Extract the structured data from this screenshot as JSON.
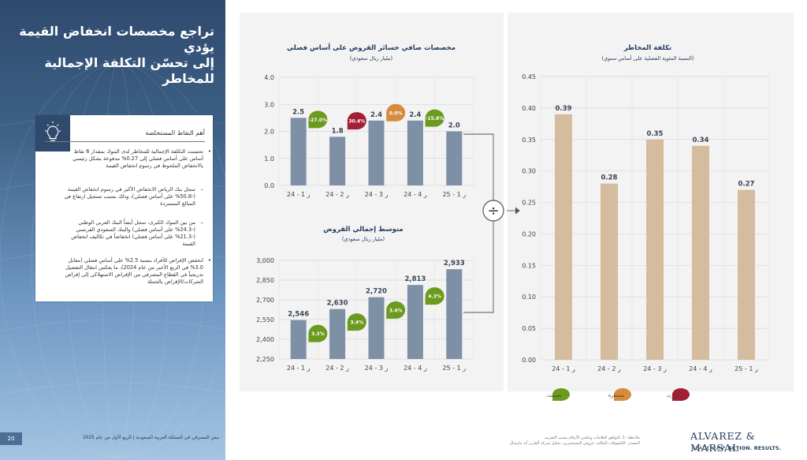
{
  "slide": {
    "title_line1": "تراجع مخصصات انخفاض القيمة يؤدي",
    "title_line2": "إلى تحسّن التكلفة الإجمالية للمخاطر",
    "page_number": "20",
    "footer_text": "نبض المصرفي في المملكة العربية السعودية | الربع الأول من عام 2025"
  },
  "key_takeaways": {
    "header": "أهم النقاط المستخلصة",
    "items": [
      {
        "text": "تحسنت التكلفة الإجمالية للمخاطر لدى البنوك بمقدار 6 نقاط أساس على أساس فصلي إلى 0.27% مدفوعة بشكل رئيسي بالانخفاض الملحوظ في رسوم انخفاض القيمة",
        "sub": false,
        "mark": "•"
      },
      {
        "text": "سجل بنك الرياض الانخفاض الأكبر في رسوم انخفاض القيمة (-50.8% على أساس فصلي)، وذلك بسبب تسجيل ارتفاع في المبالغ المستردة",
        "sub": true,
        "mark": "–"
      },
      {
        "text": "من بين البنوك الكبرى، سجل أيضاً البنك العربي الوطني (-24.3% على أساس فصلي) والبنك السعودي الفرنسي (-21.3% على أساس فصلي) انخفاضاً في تكاليف انخفاض القيمة",
        "sub": true,
        "mark": "–"
      },
      {
        "text": "انخفض الإقراض للأفراد بنسبة 2.5% على أساس فصلي (مقابل 3.0% في الربع الأخير من عام 2024)، ما يعكس انتقال التفضيل تدريجياً في القطاع المصرفي من الإقراض الاستهلاكي إلى إقراض الشركات/الإقراض بالجملة",
        "sub": false,
        "mark": "•"
      }
    ]
  },
  "colors": {
    "bar_blue": "#7e90a5",
    "bar_tan": "#d6bc9e",
    "badge_green": "#6b9a1f",
    "badge_orange": "#d48b3c",
    "badge_red": "#a31f34",
    "navy": "#1f3a5c"
  },
  "chart_data": [
    {
      "id": "impairment",
      "type": "bar",
      "title": "مخصصات صافي خسائر القروض على أساس فصلي",
      "subtitle": "(مليار ريال سعودي)",
      "categories": [
        "ر 1 - 24",
        "ر 2 - 24",
        "ر 3 - 24",
        "ر 4 - 24",
        "ر 1 - 25"
      ],
      "values": [
        2.5,
        1.8,
        2.4,
        2.4,
        2.0
      ],
      "value_labels": [
        "2.5",
        "1.8",
        "2.4",
        "2.4",
        "2.0"
      ],
      "ylim": [
        0,
        4
      ],
      "yticks": [
        "0.0",
        "1.0",
        "2.0",
        "3.0",
        "4.0"
      ],
      "grid": true,
      "badges": [
        {
          "text": "-27.0%",
          "status": "green"
        },
        {
          "text": "30.4%",
          "status": "red"
        },
        {
          "text": "0.0%",
          "status": "orange"
        },
        {
          "text": "-15.8%",
          "status": "green"
        }
      ]
    },
    {
      "id": "loans",
      "type": "bar",
      "title": "متوسط إجمالي القروض",
      "subtitle": "(مليار ريال سعودي)",
      "categories": [
        "ر 1 - 24",
        "ر 2 - 24",
        "ر 3 - 24",
        "ر 4 - 24",
        "ر 1 - 25"
      ],
      "values": [
        2546,
        2630,
        2720,
        2813,
        2933
      ],
      "value_labels": [
        "2,546",
        "2,630",
        "2,720",
        "2,813",
        "2,933"
      ],
      "ylim": [
        2250,
        3000
      ],
      "yticks": [
        "2,250",
        "2,400",
        "2,550",
        "2,700",
        "2,850",
        "3,000"
      ],
      "grid": true,
      "badges": [
        {
          "text": "3.3%",
          "status": "green"
        },
        {
          "text": "3.4%",
          "status": "green"
        },
        {
          "text": "3.4%",
          "status": "green"
        },
        {
          "text": "4.3%",
          "status": "green"
        }
      ]
    },
    {
      "id": "cost_of_risk",
      "type": "bar",
      "title": "تكلفة المخاطر",
      "subtitle": "(النسبة المئوية الفصلية على أساس سنوي)",
      "categories": [
        "ر 1 - 24",
        "ر 2 - 24",
        "ر 3 - 24",
        "ر 4 - 24",
        "ر 1 - 25"
      ],
      "values": [
        0.39,
        0.28,
        0.35,
        0.34,
        0.27
      ],
      "value_labels": [
        "0.39",
        "0.28",
        "0.35",
        "0.34",
        "0.27"
      ],
      "ylim": [
        0,
        0.45
      ],
      "yticks": [
        "0.00",
        "0.05",
        "0.10",
        "0.15",
        "0.20",
        "0.25",
        "0.30",
        "0.35",
        "0.40",
        "0.45"
      ],
      "grid": true
    }
  ],
  "legend": [
    {
      "label": "تحسنت",
      "status": "green"
    },
    {
      "label": "مستقرة",
      "status": "orange"
    },
    {
      "label": "تدهورت",
      "status": "red"
    }
  ],
  "divide_symbol": "÷",
  "footnote": "ملاحظة: 1. التوافق العلامات وعكس الأرقام بسبب التقريب\nالمصدر: الكشوفات المالية، عروض المستثمرين، تحليل شركة ألفاريز آند مارسال",
  "brand": {
    "name": "ALVAREZ & MARSAL",
    "tagline_plain": "LEADERSHIP.",
    "tagline_bold": "ACTION. RESULTS."
  }
}
